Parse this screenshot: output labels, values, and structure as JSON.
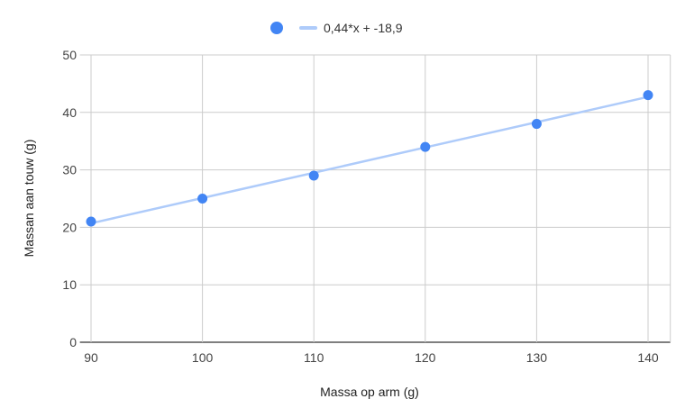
{
  "chart_data": {
    "type": "scatter",
    "title": "",
    "xlabel": "Massa op arm (g)",
    "ylabel": "Massan aan touw (g)",
    "xlim": [
      89,
      142
    ],
    "ylim": [
      0,
      50
    ],
    "x_ticks": [
      90,
      100,
      110,
      120,
      130,
      140
    ],
    "y_ticks": [
      0,
      10,
      20,
      30,
      40,
      50
    ],
    "grid": true,
    "legend_position": "top",
    "series": [
      {
        "type": "scatter",
        "color": "#4285f4",
        "points": [
          {
            "x": 90,
            "y": 21
          },
          {
            "x": 100,
            "y": 25
          },
          {
            "x": 110,
            "y": 29
          },
          {
            "x": 120,
            "y": 34
          },
          {
            "x": 130,
            "y": 38
          },
          {
            "x": 140,
            "y": 43
          }
        ]
      },
      {
        "type": "trendline",
        "name": "0,44*x + -18,9",
        "color": "#aecbfa",
        "slope": 0.44,
        "intercept": -18.9
      }
    ]
  }
}
